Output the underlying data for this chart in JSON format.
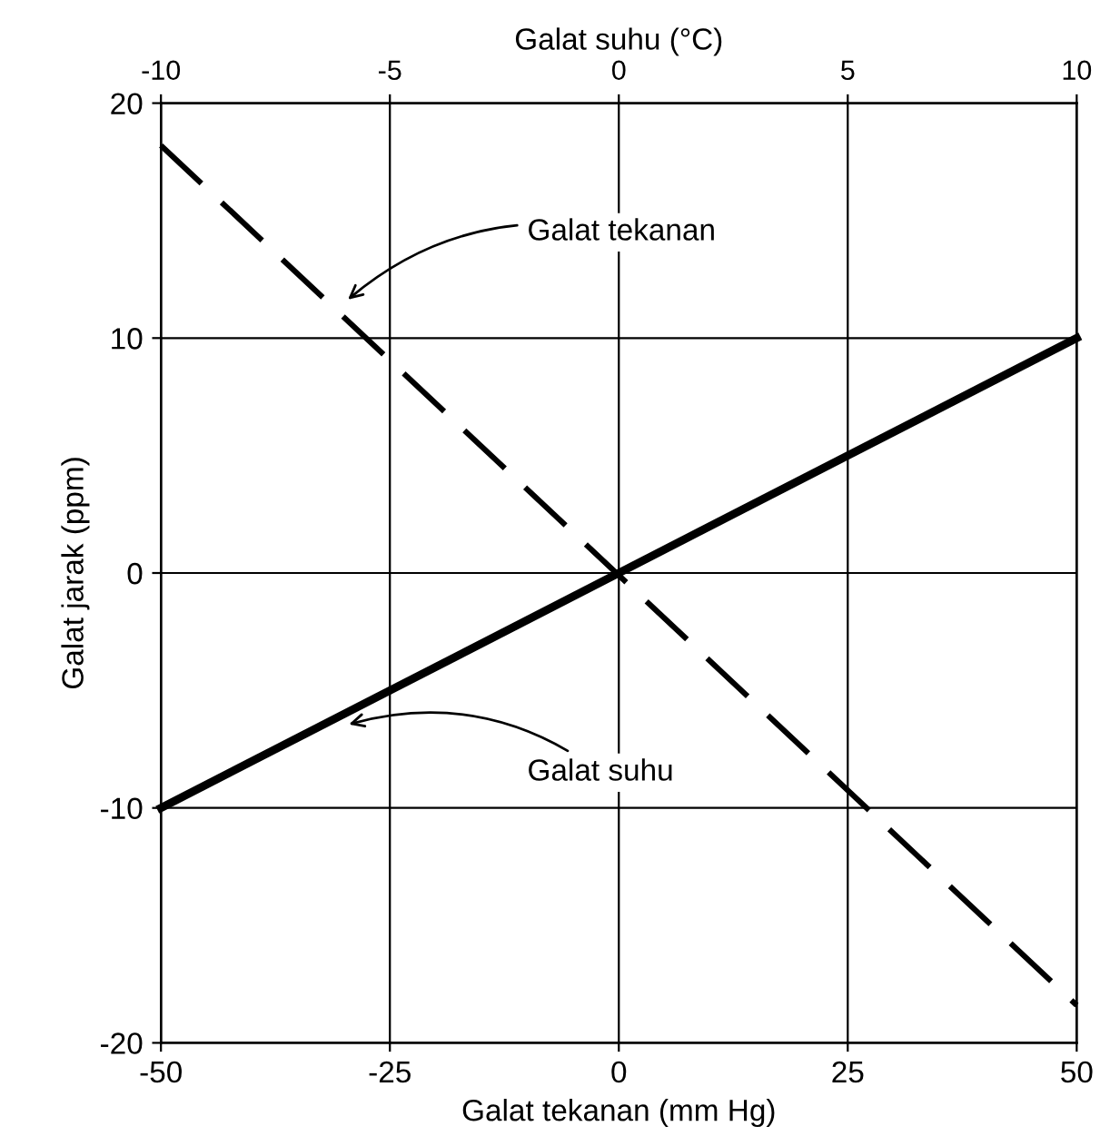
{
  "chart_data": {
    "type": "line",
    "xlabel": "Galat tekanan (mm Hg)",
    "ylabel": "Galat jarak (ppm)",
    "x2label": "Galat suhu (°C)",
    "xlim": [
      -50,
      50
    ],
    "xticks": [
      -50,
      -25,
      0,
      25,
      50
    ],
    "ylim": [
      -20,
      20
    ],
    "yticks": [
      -20,
      -10,
      0,
      10,
      20
    ],
    "x": [
      -50,
      50
    ],
    "x2lim": [
      -10,
      10
    ],
    "x2ticks": [
      -10,
      -5,
      0,
      5,
      10
    ],
    "grid": true,
    "legend": false,
    "marker": "none",
    "series": [
      {
        "values": [
          18.2,
          -18.4
        ],
        "color": "#000000",
        "line_style": "dashed"
      },
      {
        "values": [
          -10,
          10
        ],
        "color": "#000000",
        "line_style": "solid"
      }
    ],
    "annotations": [
      {
        "text": "Galat tekanan",
        "x": -30,
        "y": 11.5
      },
      {
        "text": "Galat suhu",
        "x": -30,
        "y": -6.5
      }
    ]
  }
}
